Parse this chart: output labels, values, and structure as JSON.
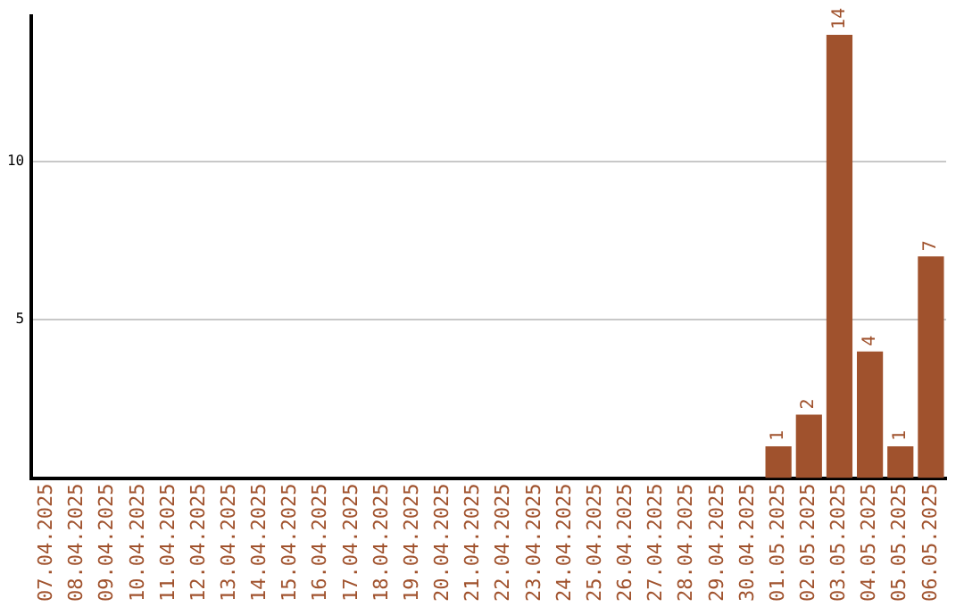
{
  "chart_data": {
    "type": "bar",
    "categories": [
      "07.04.2025",
      "08.04.2025",
      "09.04.2025",
      "10.04.2025",
      "11.04.2025",
      "12.04.2025",
      "13.04.2025",
      "14.04.2025",
      "15.04.2025",
      "16.04.2025",
      "17.04.2025",
      "18.04.2025",
      "19.04.2025",
      "20.04.2025",
      "21.04.2025",
      "22.04.2025",
      "23.04.2025",
      "24.04.2025",
      "25.04.2025",
      "26.04.2025",
      "27.04.2025",
      "28.04.2025",
      "29.04.2025",
      "30.04.2025",
      "01.05.2025",
      "02.05.2025",
      "03.05.2025",
      "04.05.2025",
      "05.05.2025",
      "06.05.2025"
    ],
    "values": [
      0,
      0,
      0,
      0,
      0,
      0,
      0,
      0,
      0,
      0,
      0,
      0,
      0,
      0,
      0,
      0,
      0,
      0,
      0,
      0,
      0,
      0,
      0,
      0,
      1,
      2,
      14,
      4,
      1,
      7
    ],
    "value_labels": [
      null,
      null,
      null,
      null,
      null,
      null,
      null,
      null,
      null,
      null,
      null,
      null,
      null,
      null,
      null,
      null,
      null,
      null,
      null,
      null,
      null,
      null,
      null,
      null,
      "1",
      "2",
      "14",
      "4",
      "1",
      "7"
    ],
    "color": "#a0522d",
    "ylim": [
      0,
      14.6
    ],
    "yticks": [
      5,
      10
    ],
    "grid": "y"
  }
}
